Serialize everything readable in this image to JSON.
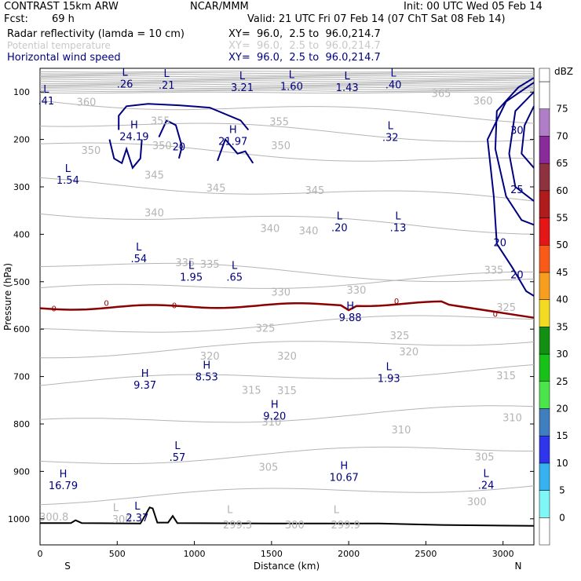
{
  "header": {
    "model": "CONTRAST 15km ARW",
    "center": "NCAR/MMM",
    "init": "Init: 00 UTC Wed 05 Feb 14",
    "fcst_label": "Fcst:",
    "fcst_value": "69 h",
    "valid": "Valid: 21 UTC Fri 07 Feb 14 (07 ChT Sat 08 Feb 14)"
  },
  "fields": [
    {
      "name": "Radar reflectivity (lamda = 10 cm)",
      "xy": "XY=  96.0,  2.5 to  96.0,214.7",
      "color": "#000000"
    },
    {
      "name": "Potential temperature",
      "xy": "XY=  96.0,  2.5 to  96.0,214.7",
      "color": "#c8c8c8"
    },
    {
      "name": "Horizontal wind speed",
      "xy": "XY=  96.0,  2.5 to  96.0,214.7",
      "color": "#000080"
    }
  ],
  "chart_data": {
    "type": "cross-section",
    "xlabel": "Distance (km)",
    "ylabel": "Pressure (hPa)",
    "xlim": [
      0,
      3200
    ],
    "ylim": [
      1055,
      50
    ],
    "x_ticks": [
      0,
      500,
      1000,
      1500,
      2000,
      2500,
      3000
    ],
    "y_ticks": [
      100,
      200,
      300,
      400,
      500,
      600,
      700,
      800,
      900,
      1000
    ],
    "end_labels": {
      "left": "S",
      "right": "N"
    },
    "colorbar": {
      "unit": "dBZ",
      "levels": [
        0,
        5,
        10,
        15,
        20,
        25,
        30,
        35,
        40,
        45,
        50,
        55,
        60,
        65,
        70,
        75
      ],
      "colors": [
        "#ffffff",
        "#7ff7f7",
        "#36b2f0",
        "#2e35eb",
        "#3f7fbf",
        "#4be54b",
        "#17c117",
        "#129012",
        "#f2db20",
        "#f79e1e",
        "#fa5a18",
        "#e41616",
        "#b01b1b",
        "#8f3240",
        "#8a2b9b",
        "#b07ec6",
        "#ffffff"
      ]
    },
    "theta_labels": [
      {
        "v": "360",
        "x": 300,
        "p": 120
      },
      {
        "v": "365",
        "x": 2600,
        "p": 102
      },
      {
        "v": "360",
        "x": 2870,
        "p": 118
      },
      {
        "v": "355",
        "x": 780,
        "p": 160
      },
      {
        "v": "355",
        "x": 1550,
        "p": 162
      },
      {
        "v": "350",
        "x": 330,
        "p": 222
      },
      {
        "v": "350",
        "x": 790,
        "p": 212
      },
      {
        "v": "350",
        "x": 1560,
        "p": 212
      },
      {
        "v": "345",
        "x": 740,
        "p": 274
      },
      {
        "v": "345",
        "x": 1140,
        "p": 302
      },
      {
        "v": "345",
        "x": 1780,
        "p": 307
      },
      {
        "v": "340",
        "x": 740,
        "p": 354
      },
      {
        "v": "340",
        "x": 1490,
        "p": 387
      },
      {
        "v": "340",
        "x": 1740,
        "p": 392
      },
      {
        "v": "335",
        "x": 940,
        "p": 459
      },
      {
        "v": "335",
        "x": 1100,
        "p": 462
      },
      {
        "v": "335",
        "x": 2940,
        "p": 475
      },
      {
        "v": "330",
        "x": 1560,
        "p": 521
      },
      {
        "v": "330",
        "x": 2050,
        "p": 517
      },
      {
        "v": "325",
        "x": 1460,
        "p": 597
      },
      {
        "v": "325",
        "x": 2330,
        "p": 613
      },
      {
        "v": "325",
        "x": 3020,
        "p": 553
      },
      {
        "v": "320",
        "x": 1100,
        "p": 656
      },
      {
        "v": "320",
        "x": 1600,
        "p": 656
      },
      {
        "v": "320",
        "x": 2390,
        "p": 647
      },
      {
        "v": "315",
        "x": 1370,
        "p": 728
      },
      {
        "v": "315",
        "x": 1600,
        "p": 729
      },
      {
        "v": "315",
        "x": 3020,
        "p": 697
      },
      {
        "v": "310",
        "x": 1500,
        "p": 795
      },
      {
        "v": "310",
        "x": 2340,
        "p": 812
      },
      {
        "v": "310",
        "x": 3060,
        "p": 786
      },
      {
        "v": "305",
        "x": 1480,
        "p": 890
      },
      {
        "v": "305",
        "x": 2880,
        "p": 869
      },
      {
        "v": "300",
        "x": 530,
        "p": 1000
      },
      {
        "v": "300",
        "x": 1650,
        "p": 1012
      },
      {
        "v": "300",
        "x": 2830,
        "p": 963
      },
      {
        "v": "299.3",
        "x": 1280,
        "p": 1012
      },
      {
        "v": "299.9",
        "x": 1980,
        "p": 1012
      },
      {
        "v": "300.8",
        "x": 90,
        "p": 995
      }
    ],
    "theta_extrema": [
      {
        "t": "L",
        "x": 490,
        "p": 984
      },
      {
        "t": "L",
        "x": 1230,
        "p": 988
      },
      {
        "t": "L",
        "x": 1920,
        "p": 988
      }
    ],
    "wind_contour_labels": [
      {
        "v": "20",
        "x": 900,
        "p": 215
      },
      {
        "v": "30",
        "x": 3090,
        "p": 180
      },
      {
        "v": "25",
        "x": 3090,
        "p": 305
      },
      {
        "v": "20",
        "x": 2980,
        "p": 417
      },
      {
        "v": "20",
        "x": 3090,
        "p": 485
      }
    ],
    "wind_extrema": [
      {
        "t": "L",
        "v": ".26",
        "x": 550,
        "p": 72
      },
      {
        "t": "L",
        "v": ".21",
        "x": 820,
        "p": 75
      },
      {
        "t": "L",
        "v": "3.21",
        "x": 1310,
        "p": 80
      },
      {
        "t": "L",
        "v": "1.60",
        "x": 1630,
        "p": 77
      },
      {
        "t": "L",
        "v": "1.43",
        "x": 1990,
        "p": 80
      },
      {
        "t": "L",
        "v": ".40",
        "x": 2290,
        "p": 74
      },
      {
        "t": "L",
        "v": ".41",
        "x": 40,
        "p": 108
      },
      {
        "t": "H",
        "v": "24.19",
        "x": 610,
        "p": 183
      },
      {
        "t": "H",
        "v": "21.97",
        "x": 1250,
        "p": 193
      },
      {
        "t": "L",
        "v": ".32",
        "x": 2270,
        "p": 185
      },
      {
        "t": "L",
        "v": "1.54",
        "x": 180,
        "p": 275
      },
      {
        "t": "L",
        "v": ".20",
        "x": 1940,
        "p": 375
      },
      {
        "t": "L",
        "v": ".13",
        "x": 2320,
        "p": 375
      },
      {
        "t": "L",
        "v": ".54",
        "x": 640,
        "p": 441
      },
      {
        "t": "L",
        "v": "1.95",
        "x": 980,
        "p": 480
      },
      {
        "t": "L",
        "v": ".65",
        "x": 1260,
        "p": 480
      },
      {
        "t": "H",
        "v": "9.88",
        "x": 2010,
        "p": 565
      },
      {
        "t": "H",
        "v": "9.37",
        "x": 680,
        "p": 707
      },
      {
        "t": "H",
        "v": "8.53",
        "x": 1080,
        "p": 690
      },
      {
        "t": "L",
        "v": "1.93",
        "x": 2260,
        "p": 693
      },
      {
        "t": "H",
        "v": "9.20",
        "x": 1520,
        "p": 773
      },
      {
        "t": "L",
        "v": ".57",
        "x": 890,
        "p": 860
      },
      {
        "t": "H",
        "v": "10.67",
        "x": 1970,
        "p": 902
      },
      {
        "t": "H",
        "v": "16.79",
        "x": 150,
        "p": 919
      },
      {
        "t": "L",
        "v": ".24",
        "x": 2890,
        "p": 918
      },
      {
        "t": "L",
        "v": "2.37",
        "x": 630,
        "p": 987
      }
    ],
    "zero_line_labels": [
      {
        "v": "0",
        "x": 90,
        "p": 556
      },
      {
        "v": "0",
        "x": 430,
        "p": 544
      },
      {
        "v": "0",
        "x": 870,
        "p": 549
      },
      {
        "v": "0",
        "x": 2310,
        "p": 540
      },
      {
        "v": "0",
        "x": 2950,
        "p": 567
      }
    ],
    "terrain_pressure": [
      [
        0,
        1009
      ],
      [
        200,
        1009
      ],
      [
        230,
        1003
      ],
      [
        270,
        1009
      ],
      [
        650,
        1010
      ],
      [
        690,
        988
      ],
      [
        710,
        976
      ],
      [
        730,
        978
      ],
      [
        760,
        1008
      ],
      [
        830,
        1008
      ],
      [
        860,
        994
      ],
      [
        890,
        1009
      ],
      [
        1500,
        1010
      ],
      [
        2200,
        1010
      ],
      [
        2600,
        1013
      ],
      [
        3200,
        1015
      ]
    ]
  }
}
